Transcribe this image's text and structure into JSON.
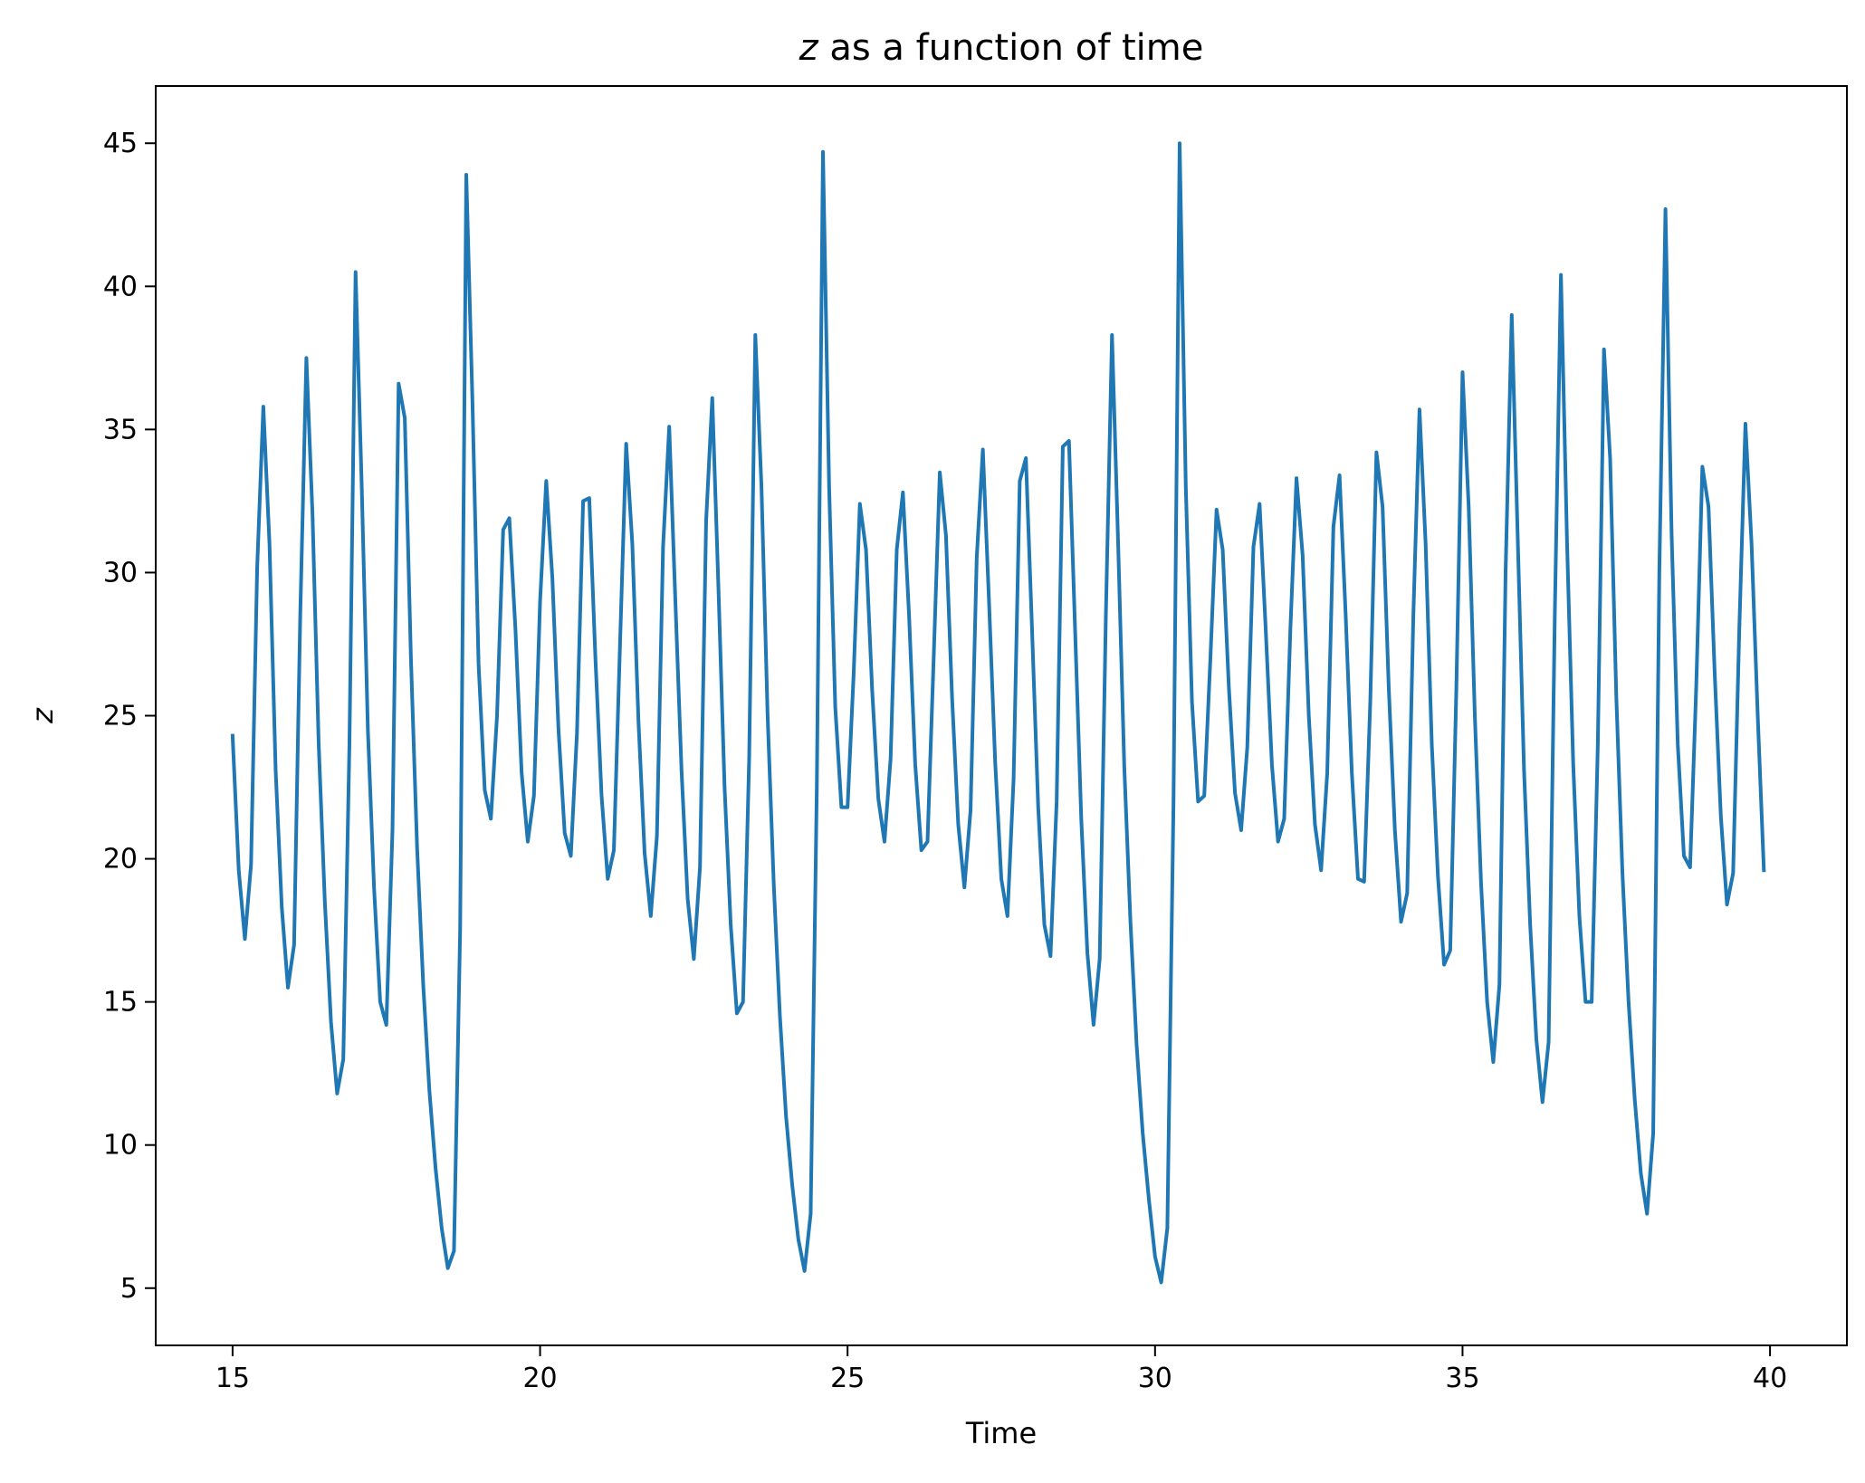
{
  "chart_data": {
    "type": "line",
    "title_var": "z",
    "title_rest": " as a function of time",
    "xlabel": "Time",
    "ylabel": "z",
    "xlim": [
      13.75,
      41.25
    ],
    "ylim": [
      3.0,
      47.0
    ],
    "xticks": [
      15,
      20,
      25,
      30,
      35,
      40
    ],
    "yticks": [
      5,
      10,
      15,
      20,
      25,
      30,
      35,
      40,
      45
    ],
    "grid": false,
    "line_color": "#1f77b4",
    "series": [
      {
        "x": [
          15.0,
          15.1,
          15.2,
          15.3,
          15.4,
          15.5,
          15.6,
          15.7,
          15.8,
          15.9,
          16.0,
          16.1,
          16.2,
          16.3,
          16.4,
          16.5,
          16.6,
          16.7,
          16.8,
          16.9,
          17.0,
          17.1,
          17.2,
          17.3,
          17.4,
          17.5,
          17.6,
          17.7,
          17.8,
          17.9,
          18.0,
          18.1,
          18.2,
          18.3,
          18.4,
          18.5,
          18.6,
          18.7,
          18.8,
          18.9,
          19.0,
          19.1,
          19.2,
          19.3,
          19.4,
          19.5,
          19.6,
          19.7,
          19.8,
          19.9,
          20.0,
          20.1,
          20.2,
          20.3,
          20.4,
          20.5,
          20.6,
          20.7,
          20.8,
          20.9,
          21.0,
          21.1,
          21.2,
          21.3,
          21.4,
          21.5,
          21.6,
          21.7,
          21.8,
          21.9,
          22.0,
          22.1,
          22.2,
          22.3,
          22.4,
          22.5,
          22.6,
          22.7,
          22.8,
          22.9,
          23.0,
          23.1,
          23.2,
          23.3,
          23.4,
          23.5,
          23.6,
          23.7,
          23.8,
          23.9,
          24.0,
          24.1,
          24.2,
          24.3,
          24.4,
          24.5,
          24.6,
          24.7,
          24.8,
          24.9,
          25.0,
          25.1,
          25.2,
          25.3,
          25.4,
          25.5,
          25.6,
          25.7,
          25.8,
          25.9,
          26.0,
          26.1,
          26.2,
          26.3,
          26.4,
          26.5,
          26.6,
          26.7,
          26.8,
          26.9,
          27.0,
          27.1,
          27.2,
          27.3,
          27.4,
          27.5,
          27.6,
          27.7,
          27.8,
          27.9,
          28.0,
          28.1,
          28.2,
          28.3,
          28.4,
          28.5,
          28.6,
          28.7,
          28.8,
          28.9,
          29.0,
          29.1,
          29.2,
          29.3,
          29.4,
          29.5,
          29.6,
          29.7,
          29.8,
          29.9,
          30.0,
          30.1,
          30.2,
          30.3,
          30.4,
          30.5,
          30.6,
          30.7,
          30.8,
          30.9,
          31.0,
          31.1,
          31.2,
          31.3,
          31.4,
          31.5,
          31.6,
          31.7,
          31.8,
          31.9,
          32.0,
          32.1,
          32.2,
          32.3,
          32.4,
          32.5,
          32.6,
          32.7,
          32.8,
          32.9,
          33.0,
          33.1,
          33.2,
          33.3,
          33.4,
          33.5,
          33.6,
          33.7,
          33.8,
          33.9,
          34.0,
          34.1,
          34.2,
          34.3,
          34.4,
          34.5,
          34.6,
          34.7,
          34.8,
          34.9,
          35.0,
          35.1,
          35.2,
          35.3,
          35.4,
          35.5,
          35.6,
          35.7,
          35.8,
          35.9,
          36.0,
          36.1,
          36.2,
          36.3,
          36.4,
          36.5,
          36.6,
          36.7,
          36.8,
          36.9,
          37.0,
          37.1,
          37.2,
          37.3,
          37.4,
          37.5,
          37.6,
          37.7,
          37.8,
          37.9,
          38.0,
          38.1,
          38.2,
          38.3,
          38.4,
          38.5,
          38.6,
          38.7,
          38.8,
          38.9,
          39.0,
          39.1,
          39.2,
          39.3,
          39.4,
          39.5,
          39.6,
          39.7,
          39.8,
          39.9
        ],
        "values": [
          24.3,
          19.6,
          17.2,
          19.8,
          30.2,
          35.8,
          31.0,
          23.1,
          18.3,
          15.5,
          17.0,
          28.5,
          37.5,
          32.0,
          24.0,
          18.5,
          14.3,
          11.8,
          13.0,
          24.0,
          40.5,
          33.0,
          24.5,
          19.0,
          15.0,
          14.2,
          21.0,
          36.6,
          35.4,
          27.0,
          20.4,
          15.6,
          11.9,
          9.2,
          7.1,
          5.7,
          6.3,
          17.5,
          43.9,
          36.0,
          26.8,
          22.4,
          21.4,
          25.0,
          31.5,
          31.9,
          28.0,
          23.0,
          20.6,
          22.2,
          29.0,
          33.2,
          29.8,
          24.5,
          20.9,
          20.1,
          24.4,
          32.5,
          32.6,
          27.0,
          22.2,
          19.3,
          20.3,
          27.5,
          34.5,
          31.0,
          24.8,
          20.2,
          18.0,
          20.8,
          30.9,
          35.1,
          29.0,
          23.1,
          18.6,
          16.5,
          19.7,
          31.8,
          36.1,
          29.5,
          22.5,
          17.7,
          14.6,
          15.0,
          23.5,
          38.3,
          33.0,
          25.0,
          19.1,
          14.5,
          11.0,
          8.6,
          6.7,
          5.6,
          7.6,
          22.5,
          44.7,
          33.0,
          25.3,
          21.8,
          21.8,
          26.5,
          32.4,
          30.8,
          25.9,
          22.1,
          20.6,
          23.5,
          30.8,
          32.8,
          28.5,
          23.3,
          20.3,
          20.6,
          27.0,
          33.5,
          31.3,
          25.6,
          21.2,
          19.0,
          21.7,
          30.5,
          34.3,
          29.0,
          23.4,
          19.3,
          18.0,
          22.8,
          33.2,
          34.0,
          28.0,
          21.8,
          17.7,
          16.6,
          22.0,
          34.4,
          34.6,
          28.0,
          21.4,
          16.7,
          14.2,
          16.5,
          28.5,
          38.3,
          31.0,
          23.2,
          17.8,
          13.5,
          10.4,
          8.1,
          6.1,
          5.2,
          7.1,
          22.0,
          45.0,
          33.0,
          25.5,
          22.0,
          22.2,
          27.0,
          32.2,
          30.8,
          26.0,
          22.3,
          21.0,
          23.9,
          30.9,
          32.4,
          28.0,
          23.3,
          20.6,
          21.4,
          28.0,
          33.3,
          30.6,
          25.0,
          21.2,
          19.6,
          23.0,
          31.6,
          33.4,
          28.5,
          23.0,
          19.3,
          19.2,
          25.5,
          34.2,
          32.3,
          26.0,
          21.0,
          17.8,
          18.8,
          28.5,
          35.7,
          31.0,
          24.0,
          19.4,
          16.3,
          16.8,
          26.0,
          37.0,
          32.3,
          25.0,
          19.2,
          15.0,
          12.9,
          15.6,
          30.0,
          39.0,
          31.0,
          23.1,
          17.7,
          13.7,
          11.5,
          13.6,
          28.5,
          40.4,
          31.0,
          23.3,
          18.0,
          15.0,
          15.0,
          24.0,
          37.8,
          34.0,
          25.7,
          19.5,
          15.0,
          11.6,
          9.0,
          7.6,
          10.4,
          30.0,
          42.7,
          31.3,
          24.0,
          20.1,
          19.7,
          26.0,
          33.7,
          32.3,
          26.5,
          21.5,
          18.4,
          19.5,
          28.0,
          35.2,
          31.0,
          25.0,
          19.6
        ]
      }
    ]
  }
}
